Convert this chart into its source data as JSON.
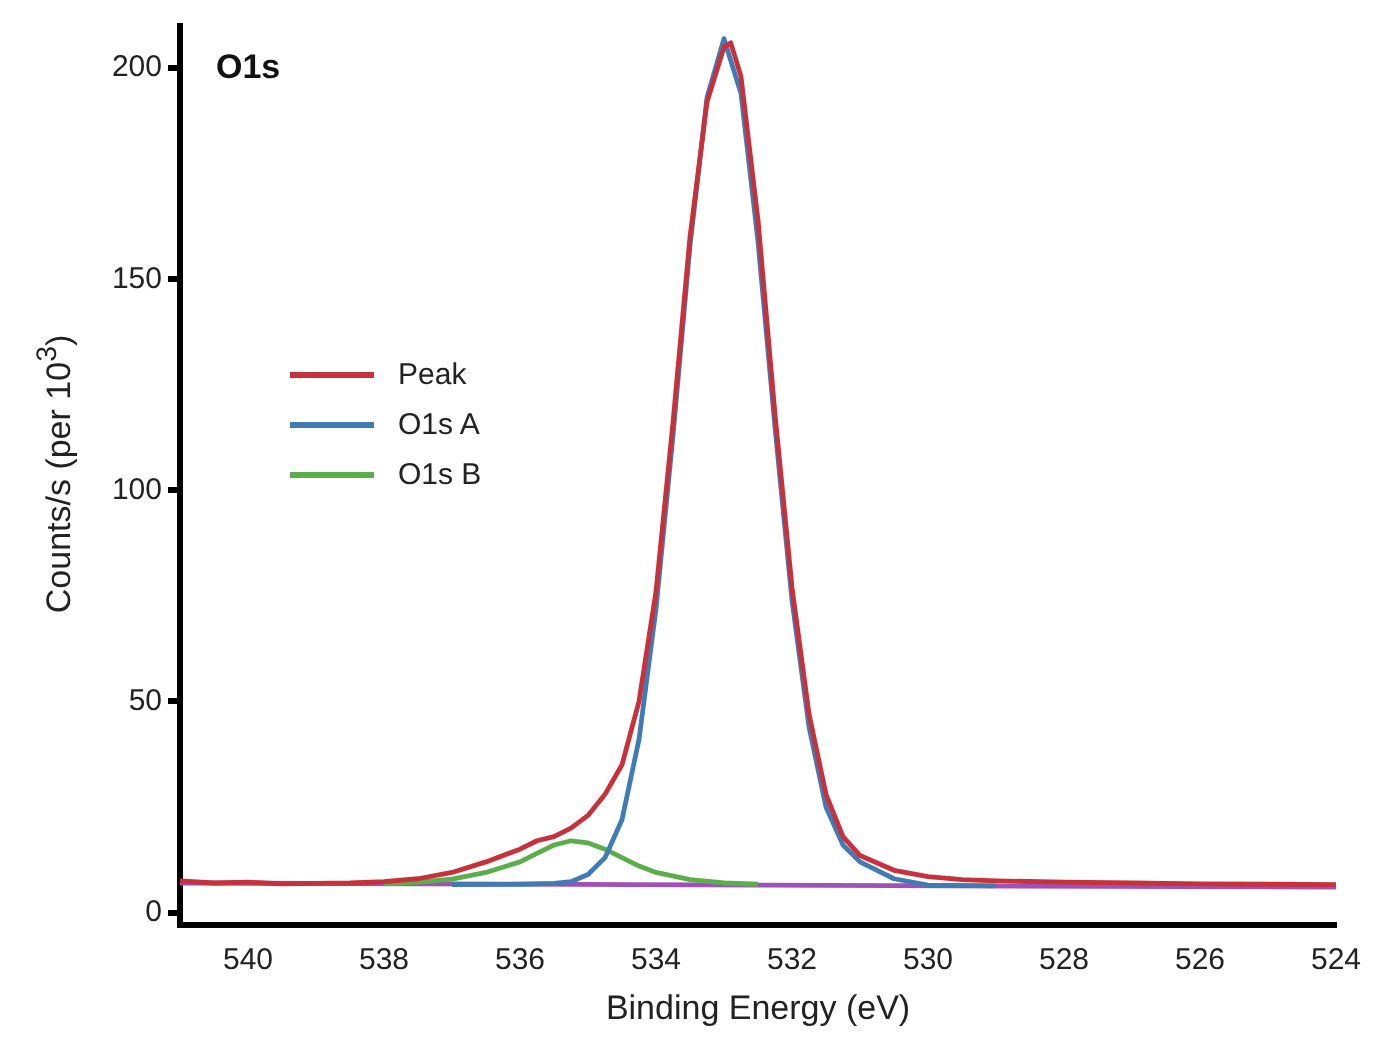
{
  "chart_data": {
    "type": "line",
    "title": "O1s",
    "xlabel": "Binding Energy (eV)",
    "ylabel": "Counts/s (per 10$^{3}$)",
    "xlim": [
      541,
      524
    ],
    "xticks": [
      540,
      538,
      536,
      534,
      532,
      530,
      528,
      526,
      524
    ],
    "ylim": [
      -3,
      210
    ],
    "yticks": [
      0,
      50,
      100,
      150,
      200
    ],
    "grid": false,
    "legend": "top left",
    "marker": "none",
    "line_style": "solid",
    "series": [
      {
        "name": "Peak",
        "color": "#c8303a",
        "x": [
          541,
          540.5,
          540,
          539.5,
          539,
          538.5,
          538,
          537.5,
          537,
          536.5,
          536,
          535.75,
          535.5,
          535.25,
          535,
          534.75,
          534.5,
          534.25,
          534,
          533.75,
          533.5,
          533.25,
          533,
          532.9,
          532.75,
          532.5,
          532.25,
          532,
          531.75,
          531.5,
          531.25,
          531,
          530.5,
          530,
          529.5,
          529,
          528,
          527,
          526,
          525,
          524
        ],
        "values": [
          7.5,
          7,
          7.2,
          6.8,
          6.9,
          7,
          7.3,
          8,
          9.5,
          12,
          15,
          17,
          18,
          20,
          23,
          28,
          35,
          50,
          76,
          116,
          160,
          192,
          205,
          206,
          198,
          164,
          118,
          77,
          47,
          28,
          18,
          13.5,
          10,
          8.5,
          7.8,
          7.5,
          7.2,
          7,
          6.8,
          6.7,
          6.6
        ]
      },
      {
        "name": "O1s A",
        "color": "#3f7bb5",
        "x": [
          537,
          536,
          535.5,
          535.25,
          535,
          534.75,
          534.5,
          534.25,
          534,
          533.75,
          533.5,
          533.25,
          533,
          532.75,
          532.5,
          532.25,
          532,
          531.75,
          531.5,
          531.25,
          531,
          530.5,
          530,
          529
        ],
        "values": [
          6.6,
          6.7,
          6.9,
          7.3,
          9,
          13,
          22,
          41,
          72,
          113,
          158,
          193,
          207,
          194,
          159,
          115,
          74,
          44,
          25,
          16,
          12,
          8,
          6.5,
          6.3
        ]
      },
      {
        "name": "O1s B",
        "color": "#5aaf4a",
        "x": [
          538,
          537.5,
          537,
          536.5,
          536,
          535.75,
          535.5,
          535.25,
          535,
          534.75,
          534.5,
          534.25,
          534,
          533.5,
          533,
          532.5
        ],
        "values": [
          6.8,
          7.2,
          7.9,
          9.5,
          12,
          14,
          16,
          17,
          16.5,
          15,
          13,
          11,
          9.5,
          7.8,
          7,
          6.7
        ]
      },
      {
        "color": "#a050b8",
        "x": [
          541,
          524
        ],
        "values": [
          7,
          6
        ]
      }
    ]
  }
}
